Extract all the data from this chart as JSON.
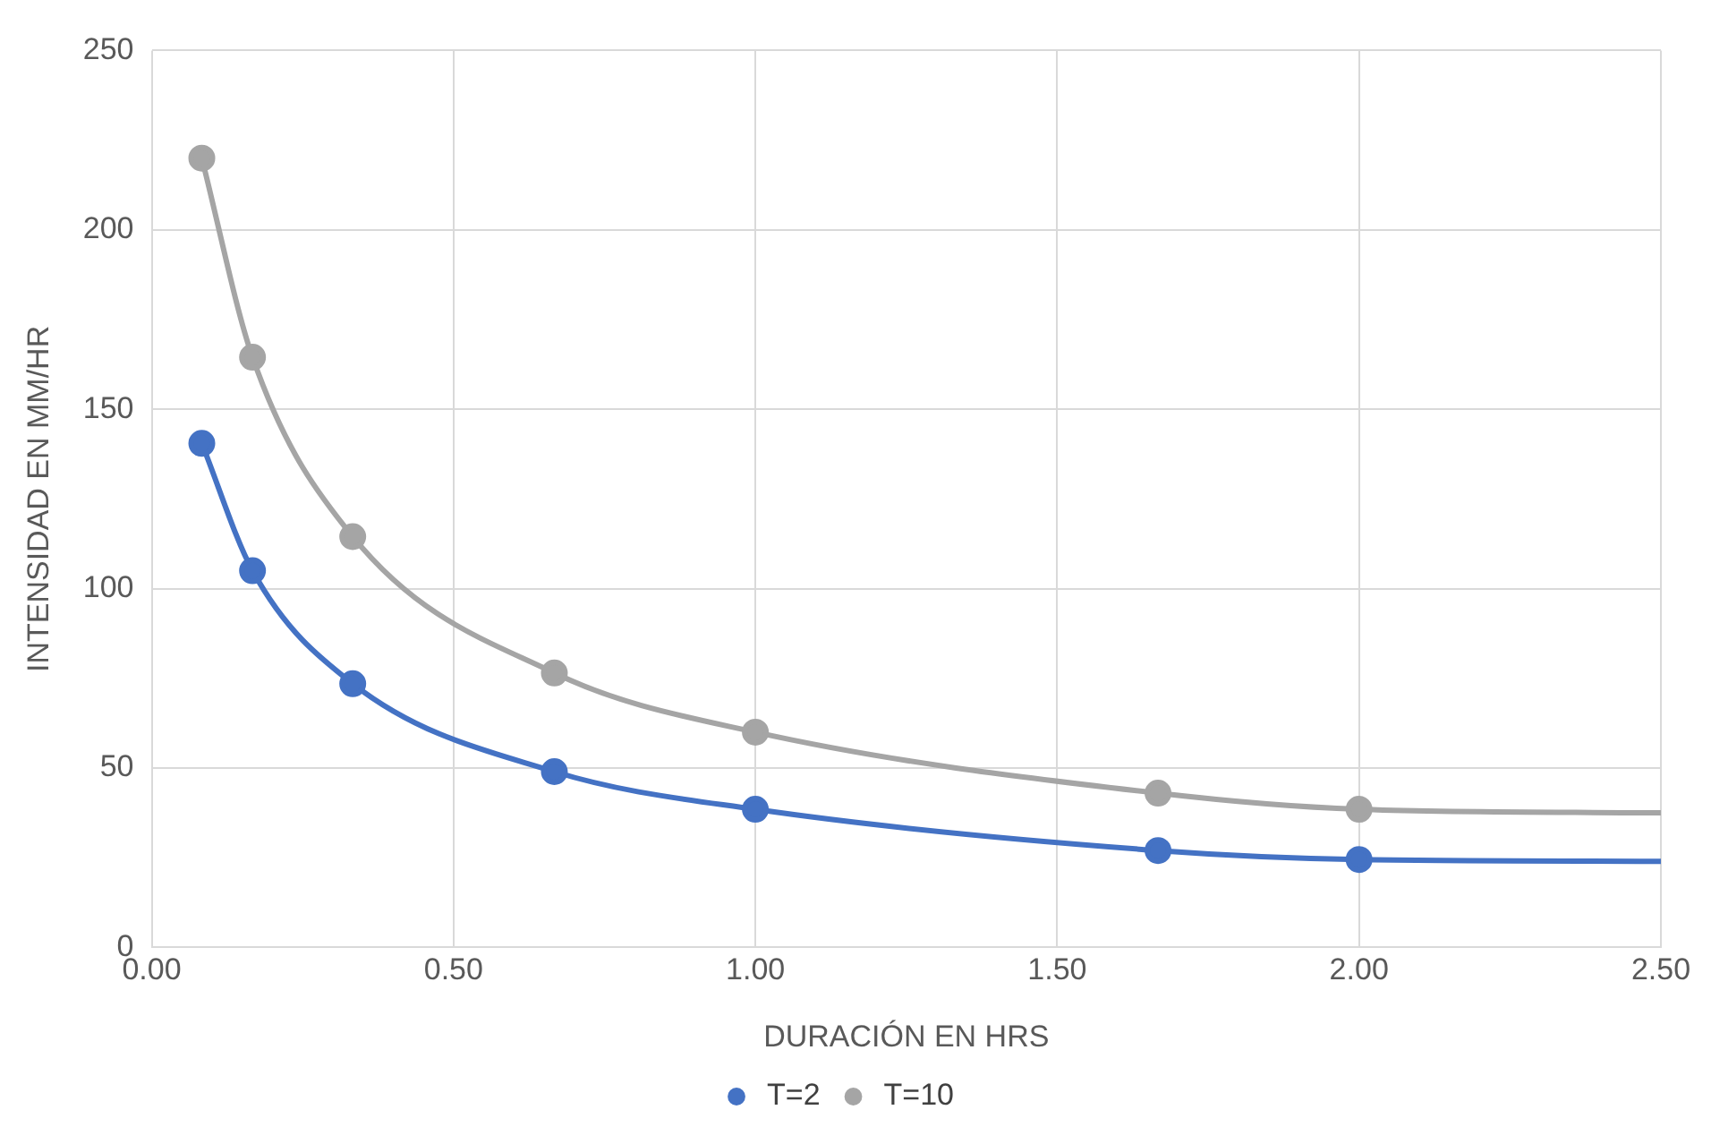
{
  "chart_data": {
    "type": "line",
    "xlabel": "DURACIÓN EN HRS",
    "ylabel": "INTENSIDAD EN MM/HR",
    "x": [
      0.083,
      0.167,
      0.333,
      0.667,
      1.0,
      1.667,
      2.0,
      2.5
    ],
    "series": [
      {
        "name": "T=2",
        "color": "#4472c4",
        "values": [
          140.5,
          105,
          73.5,
          49,
          38.5,
          27,
          24.5,
          24
        ]
      },
      {
        "name": "T=10",
        "color": "#a5a5a5",
        "values": [
          220,
          164.5,
          114.5,
          76.5,
          60,
          43,
          38.5,
          37.5
        ]
      }
    ],
    "xlim": [
      0,
      2.5
    ],
    "xticks": [
      {
        "value": 0,
        "label": "0.00"
      },
      {
        "value": 0.5,
        "label": "0.50"
      },
      {
        "value": 1,
        "label": "1.00"
      },
      {
        "value": 1.5,
        "label": "1.50"
      },
      {
        "value": 2,
        "label": "2.00"
      },
      {
        "value": 2.5,
        "label": "2.50"
      }
    ],
    "ylim": [
      0,
      250
    ],
    "yticks": [
      0,
      50,
      100,
      150,
      200,
      250
    ],
    "grid": true,
    "legend": "bottom",
    "marker": "circle",
    "line_style": "solid"
  }
}
